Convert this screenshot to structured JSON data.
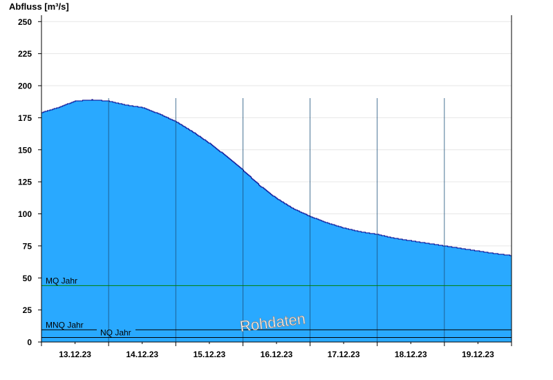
{
  "chart_data": {
    "type": "area",
    "ylabel": "Abfluss [m³/s]",
    "ylim": [
      0,
      255
    ],
    "yticks": [
      0,
      25,
      50,
      75,
      100,
      125,
      150,
      175,
      200,
      225,
      250
    ],
    "xlim": [
      0,
      7
    ],
    "day_ticks": [
      0,
      1,
      2,
      3,
      4,
      5,
      6,
      7
    ],
    "day_labels": [
      "13.12.23",
      "14.12.23",
      "15.12.23",
      "16.12.23",
      "17.12.23",
      "18.12.23",
      "19.12.23"
    ],
    "grid": true,
    "series": [
      {
        "x": [
          0,
          0.25,
          0.5,
          0.75,
          1.0,
          1.25,
          1.5,
          1.75,
          2.0,
          2.25,
          2.5,
          2.75,
          3.0,
          3.25,
          3.5,
          3.75,
          4.0,
          4.25,
          4.5,
          4.75,
          5.0,
          5.25,
          5.5,
          5.75,
          6.0,
          6.25,
          6.5,
          6.75,
          7.0
        ],
        "y": [
          179,
          183,
          188,
          189,
          188,
          185,
          183,
          178,
          172,
          164,
          155,
          145,
          134,
          122,
          112,
          104,
          98,
          93,
          89,
          86,
          84,
          81,
          79,
          77,
          75,
          73,
          71,
          69,
          67.5
        ],
        "fill": "#29a9ff",
        "line": "#00008b"
      }
    ],
    "reference_lines": [
      {
        "label": "MQ Jahr",
        "value": 44,
        "color": "#008000"
      },
      {
        "label": "MNQ Jahr",
        "value": 9.5,
        "color": "#000000"
      },
      {
        "label": "NQ Jahr",
        "value": 3.5,
        "color": "#000000"
      }
    ],
    "watermark": "Rohdaten"
  }
}
